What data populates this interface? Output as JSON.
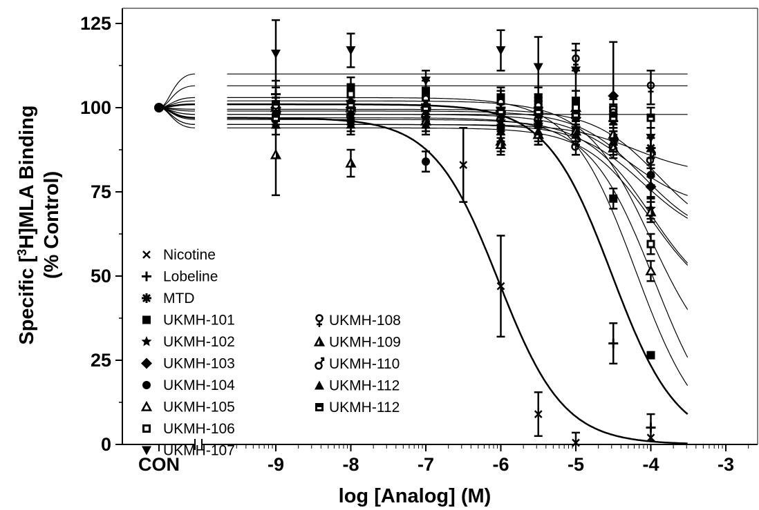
{
  "chart_data": {
    "type": "scatter",
    "title": "",
    "xlabel": "log [Analog] (M)",
    "ylabel_line1_prefix": "Specific [",
    "ylabel_line1_sup": "3",
    "ylabel_line1_suffix": "H]MLA Binding",
    "ylabel_line2": "(% Control)",
    "xlim": [
      -9.7,
      -2.5
    ],
    "ylim": [
      0,
      125
    ],
    "x_ticks": [
      {
        "value": "CON",
        "label": "CON"
      },
      {
        "value": -9,
        "label": "-9"
      },
      {
        "value": -8,
        "label": "-8"
      },
      {
        "value": -7,
        "label": "-7"
      },
      {
        "value": -6,
        "label": "-6"
      },
      {
        "value": -5,
        "label": "-5"
      },
      {
        "value": -4,
        "label": "-4"
      },
      {
        "value": -3,
        "label": "-3"
      }
    ],
    "y_ticks": [
      0,
      25,
      50,
      75,
      100,
      125
    ],
    "x_scale": "log concentration with axis break after CON",
    "legend_position": "bottom-left",
    "grid": false,
    "control_value": 100,
    "series": [
      {
        "name": "Nicotine",
        "marker": "x",
        "points": [
          [
            -9,
            98
          ],
          [
            -8,
            97
          ],
          [
            -7,
            96
          ],
          [
            -6.5,
            83
          ],
          [
            -6,
            47
          ],
          [
            -5.5,
            9
          ],
          [
            -5,
            0.5
          ],
          [
            -4,
            2
          ]
        ],
        "errors": [
          0,
          0,
          0,
          11,
          15,
          6.5,
          3,
          0
        ],
        "curve": {
          "top": 97,
          "bottom": 0,
          "logIC50": -6.03,
          "hill": 1.0
        }
      },
      {
        "name": "Lobeline",
        "marker": "plus",
        "points": [
          [
            -9,
            104
          ],
          [
            -8,
            102
          ],
          [
            -7,
            101
          ],
          [
            -6,
            100
          ],
          [
            -5.5,
            100
          ],
          [
            -5,
            98
          ],
          [
            -4.5,
            30
          ],
          [
            -4,
            5
          ]
        ],
        "errors": [
          4,
          3,
          2,
          2,
          2,
          2,
          6,
          4
        ],
        "curve": {
          "top": 101,
          "bottom": 0,
          "logIC50": -4.52,
          "hill": 1.0
        }
      },
      {
        "name": "MTD",
        "marker": "asterisk",
        "points": [
          [
            -9,
            100
          ],
          [
            -8,
            99
          ],
          [
            -7,
            99
          ],
          [
            -6,
            98
          ],
          [
            -5.5,
            99
          ],
          [
            -5,
            97
          ],
          [
            -4.5,
            96
          ],
          [
            -4,
            88
          ]
        ],
        "errors": [
          3,
          3,
          3,
          3,
          3,
          3,
          3,
          3
        ],
        "curve": {
          "top": 99.5,
          "bottom": 60,
          "logIC50": -3.9,
          "hill": 1.0
        }
      },
      {
        "name": "UKMH-101",
        "marker": "square",
        "points": [
          [
            -9,
            101
          ],
          [
            -8,
            106
          ],
          [
            -7,
            105
          ],
          [
            -6,
            103
          ],
          [
            -5.5,
            103
          ],
          [
            -5,
            102
          ],
          [
            -4.5,
            73
          ],
          [
            -4,
            26.5
          ]
        ],
        "errors": [
          3,
          3,
          3,
          3,
          3,
          3,
          3,
          0
        ],
        "curve": {
          "top": 103,
          "bottom": 0,
          "logIC50": -4.2,
          "hill": 1.0
        }
      },
      {
        "name": "UKMH-102",
        "marker": "star",
        "points": [
          [
            -9,
            99
          ],
          [
            -8,
            98
          ],
          [
            -7,
            97
          ],
          [
            -6,
            96
          ],
          [
            -5.5,
            95
          ],
          [
            -5,
            94
          ],
          [
            -4.5,
            90
          ],
          [
            -4,
            70
          ]
        ],
        "errors": [
          3,
          3,
          3,
          3,
          3,
          3,
          3,
          3
        ],
        "curve": {
          "top": 96.5,
          "bottom": 40,
          "logIC50": -4.0,
          "hill": 1.0
        }
      },
      {
        "name": "UKMH-103",
        "marker": "diamond",
        "points": [
          [
            -9,
            100
          ],
          [
            -8,
            100
          ],
          [
            -7,
            100
          ],
          [
            -6,
            99
          ],
          [
            -5.5,
            98
          ],
          [
            -5,
            97
          ],
          [
            -4.5,
            103.5
          ],
          [
            -4,
            76.5
          ]
        ],
        "errors": [
          3,
          3,
          3,
          3,
          3,
          3,
          16,
          3
        ],
        "curve": {
          "top": 99,
          "bottom": 60,
          "logIC50": -4.1,
          "hill": 1.0
        }
      },
      {
        "name": "UKMH-104",
        "marker": "circle",
        "points": [
          [
            -9,
            98
          ],
          [
            -8,
            96
          ],
          [
            -7,
            84
          ],
          [
            -6,
            94
          ],
          [
            -5.5,
            95
          ],
          [
            -5,
            93
          ],
          [
            -4.5,
            91
          ],
          [
            -4,
            80
          ]
        ],
        "errors": [
          3,
          3,
          3,
          3,
          3,
          3,
          3,
          3
        ],
        "curve": {
          "top": 95,
          "bottom": 60,
          "logIC50": -4.1,
          "hill": 1.0
        }
      },
      {
        "name": "UKMH-105",
        "marker": "triangle-open",
        "points": [
          [
            -9,
            100
          ],
          [
            -8,
            100
          ],
          [
            -7,
            101
          ],
          [
            -6,
            90
          ],
          [
            -5.5,
            92
          ],
          [
            -5,
            100
          ],
          [
            -4.5,
            88
          ],
          [
            -4,
            51.5
          ]
        ],
        "errors": [
          3,
          3,
          3,
          3,
          3,
          3,
          3,
          3
        ],
        "curve": {
          "top": 97,
          "bottom": 0,
          "logIC50": -3.95,
          "hill": 1.0
        }
      },
      {
        "name": "UKMH-106",
        "marker": "square-open",
        "points": [
          [
            -9,
            100
          ],
          [
            -8,
            104
          ],
          [
            -7,
            103
          ],
          [
            -6,
            102
          ],
          [
            -5.5,
            101
          ],
          [
            -5,
            100
          ],
          [
            -4.5,
            99.5
          ],
          [
            -4,
            59.5
          ]
        ],
        "errors": [
          3,
          3,
          3,
          3,
          3,
          3,
          3,
          3
        ],
        "curve": {
          "top": 102,
          "bottom": 20,
          "logIC50": -4.0,
          "hill": 1.0
        }
      },
      {
        "name": "UKMH-107",
        "marker": "triangle-down",
        "points": [
          [
            -9,
            116
          ],
          [
            -8,
            117
          ],
          [
            -7,
            108
          ],
          [
            -6,
            117
          ],
          [
            -5.5,
            112
          ],
          [
            -5,
            111
          ],
          [
            -4.5,
            97
          ],
          [
            -4,
            91
          ]
        ],
        "errors": [
          10,
          5,
          3,
          6,
          9,
          8,
          3,
          3
        ],
        "curve": {
          "top": 110,
          "bottom": 110,
          "logIC50": -4.0,
          "hill": 1.0
        }
      },
      {
        "name": "UKMH-108",
        "marker": "female",
        "points": [
          [
            -9,
            100
          ],
          [
            -8,
            101
          ],
          [
            -7,
            102
          ],
          [
            -6,
            101
          ],
          [
            -5.5,
            100
          ],
          [
            -5,
            114
          ],
          [
            -4.5,
            98
          ],
          [
            -4,
            106
          ]
        ],
        "errors": [
          3,
          3,
          3,
          3,
          3,
          3,
          3,
          5
        ],
        "curve": {
          "top": 106.5,
          "bottom": 106.5,
          "logIC50": -4.0,
          "hill": 1.0
        }
      },
      {
        "name": "UKMH-109",
        "marker": "triangle-half",
        "points": [
          [
            -9,
            86
          ],
          [
            -8,
            83.5
          ],
          [
            -7,
            96
          ],
          [
            -6,
            89
          ],
          [
            -5.5,
            92
          ],
          [
            -5,
            93
          ],
          [
            -4.5,
            92
          ],
          [
            -4,
            69
          ]
        ],
        "errors": [
          12,
          4,
          3,
          3,
          3,
          3,
          3,
          3
        ],
        "curve": {
          "top": 94,
          "bottom": 40,
          "logIC50": -4.0,
          "hill": 1.0
        }
      },
      {
        "name": "UKMH-110",
        "marker": "male",
        "points": [
          [
            -9,
            97
          ],
          [
            -8,
            98
          ],
          [
            -7,
            98
          ],
          [
            -6,
            97
          ],
          [
            -5.5,
            97
          ],
          [
            -5,
            89
          ],
          [
            -4.5,
            89
          ],
          [
            -4,
            85
          ]
        ],
        "errors": [
          3,
          3,
          3,
          3,
          3,
          3,
          3,
          3
        ],
        "curve": {
          "top": 98,
          "bottom": 70,
          "logIC50": -4.3,
          "hill": 1.0
        }
      },
      {
        "name": "UKMH-112",
        "marker": "triangle",
        "points": [
          [
            -9,
            95
          ],
          [
            -8,
            95
          ],
          [
            -7,
            95
          ],
          [
            -6,
            93
          ],
          [
            -5.5,
            93
          ],
          [
            -5,
            92
          ],
          [
            -4.5,
            90
          ],
          [
            -4,
            88
          ]
        ],
        "errors": [
          3,
          3,
          3,
          3,
          3,
          3,
          3,
          3
        ],
        "curve": {
          "top": 95,
          "bottom": 80,
          "logIC50": -4.2,
          "hill": 1.0
        }
      },
      {
        "name": "UKMH-112",
        "marker": "square-half",
        "points": [
          [
            -9,
            97
          ],
          [
            -8,
            101
          ],
          [
            -7,
            100
          ],
          [
            -6,
            99
          ],
          [
            -5.5,
            99
          ],
          [
            -5,
            98
          ],
          [
            -4.5,
            97
          ],
          [
            -4,
            97
          ]
        ],
        "errors": [
          3,
          3,
          3,
          3,
          3,
          3,
          3,
          3
        ],
        "curve": {
          "top": 98,
          "bottom": 98,
          "logIC50": -4.0,
          "hill": 1.0
        }
      }
    ]
  }
}
